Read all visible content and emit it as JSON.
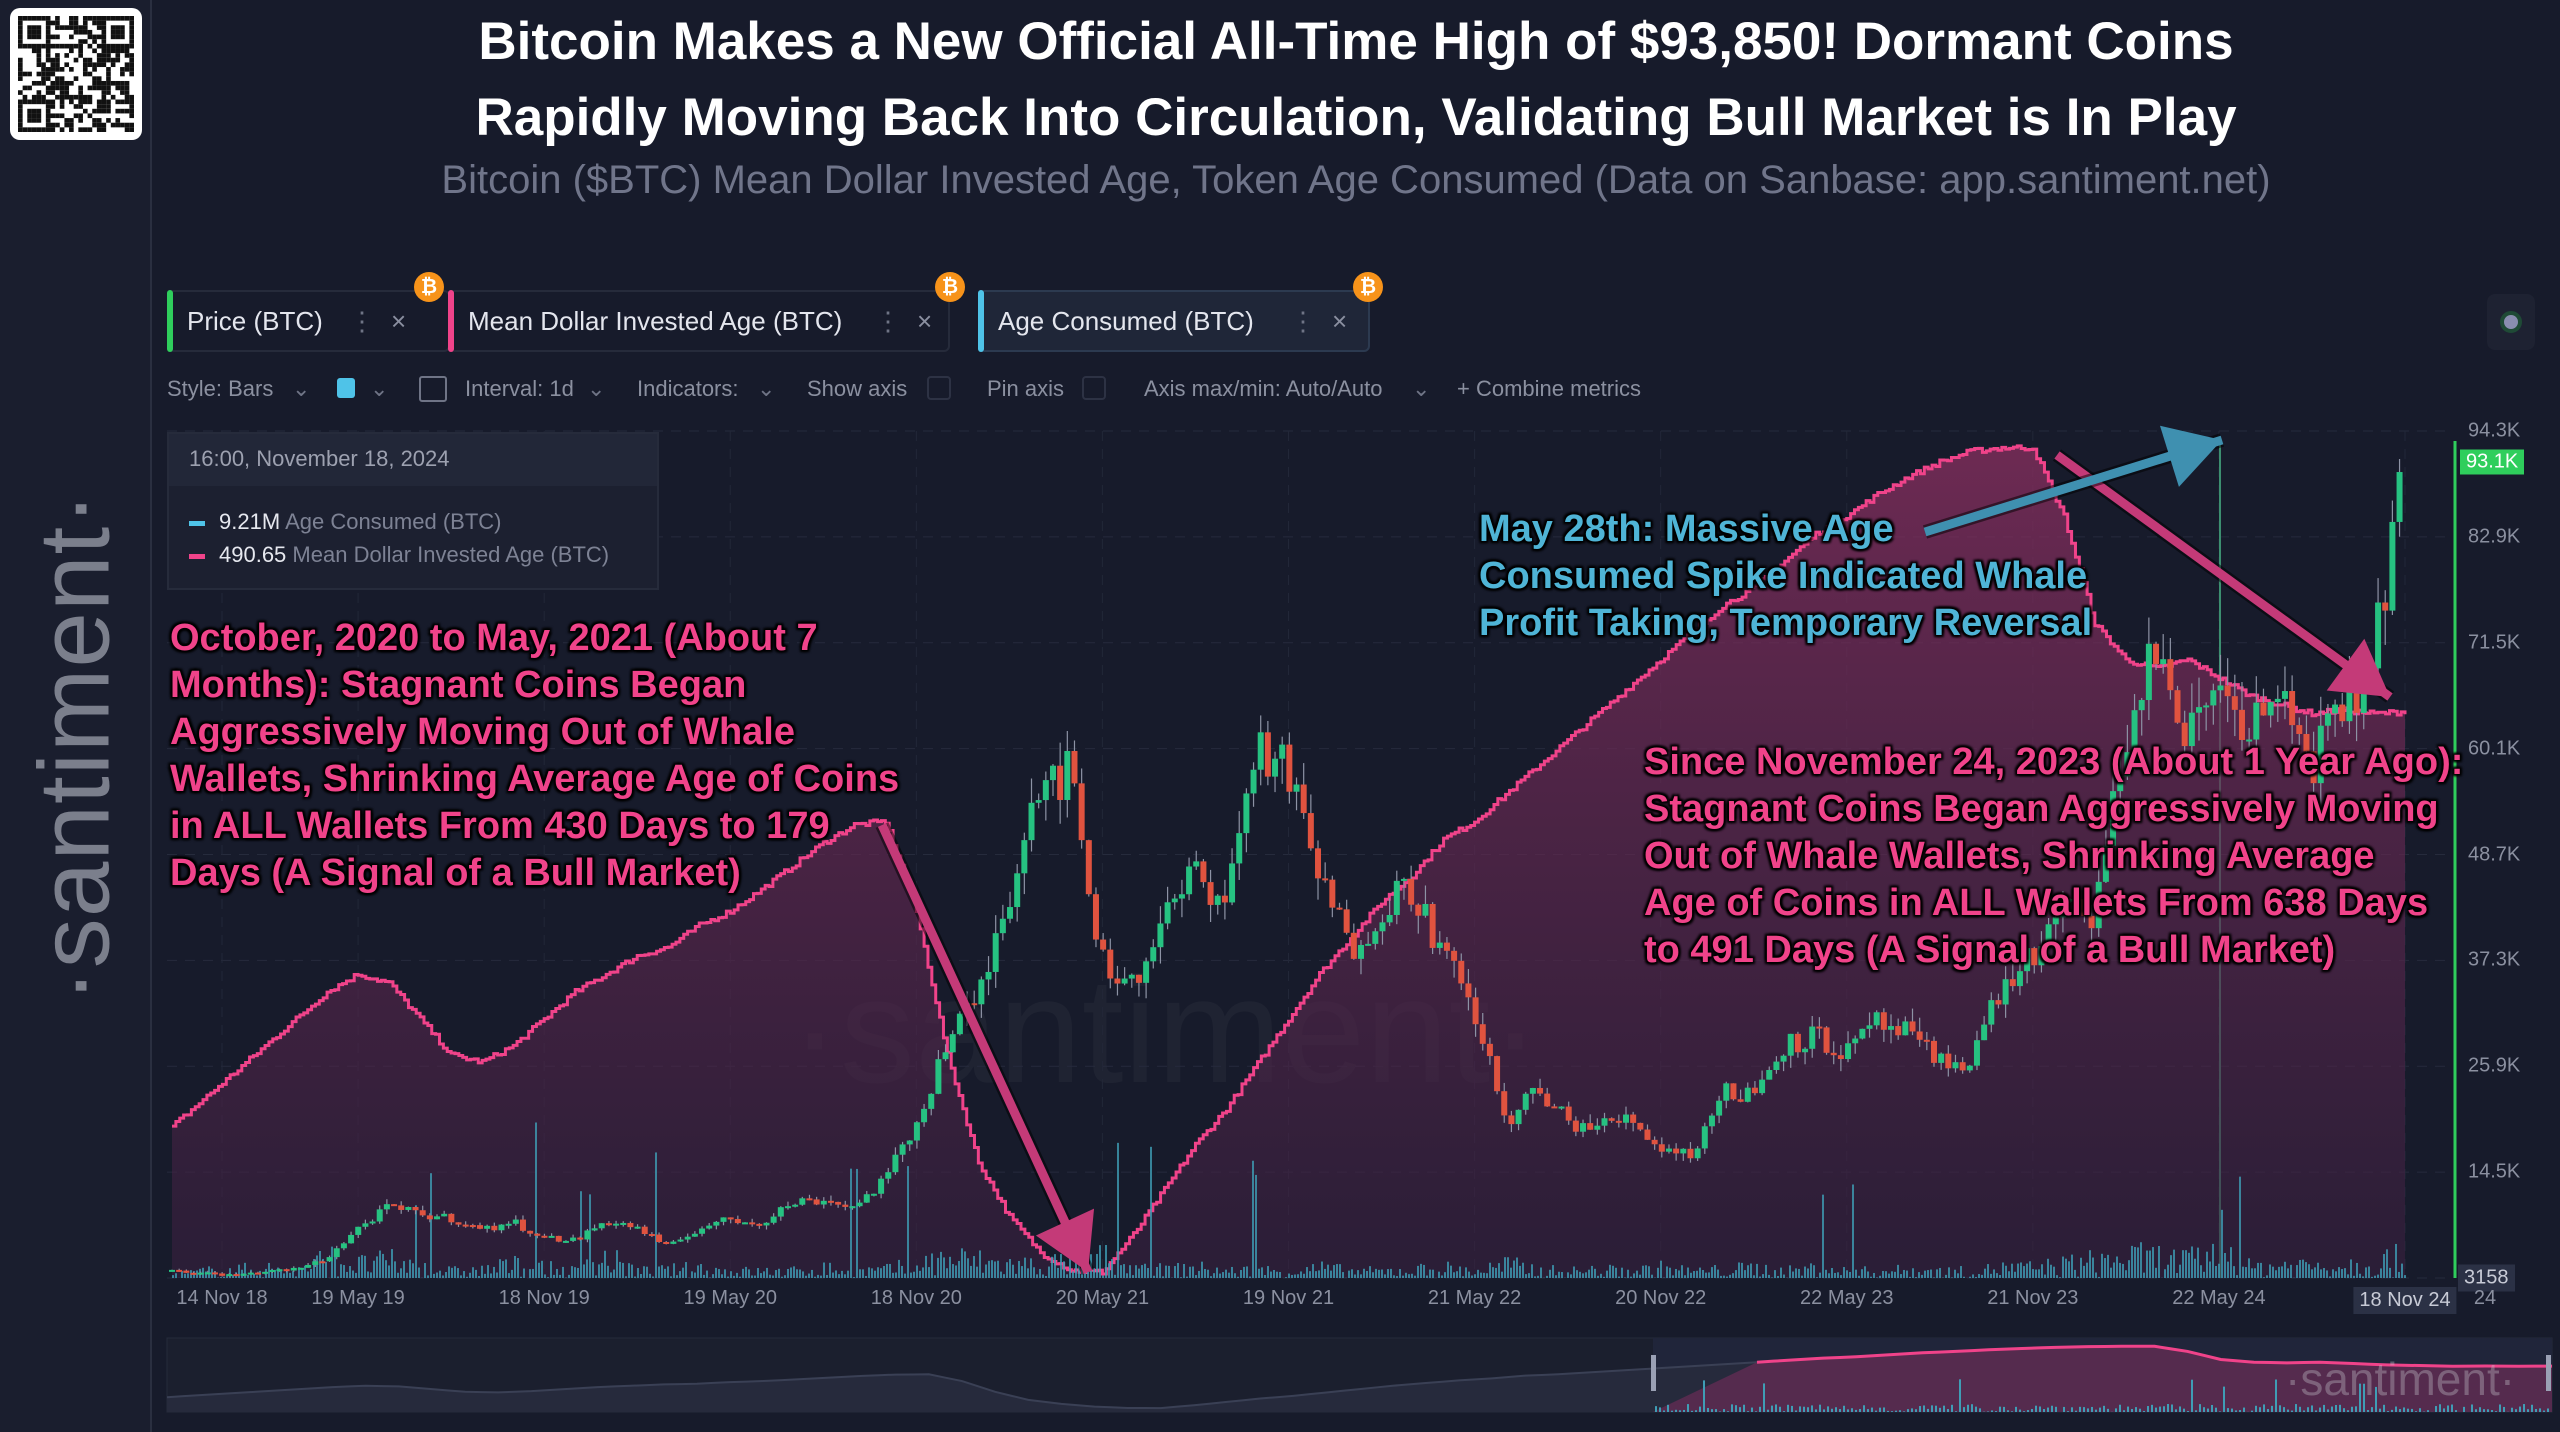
{
  "header": {
    "title_line1": "Bitcoin Makes a New Official All-Time High of $93,850! Dormant Coins",
    "title_line2": "Rapidly Moving Back Into Circulation, Validating Bull Market is In Play",
    "subtitle": "Bitcoin ($BTC) Mean Dollar Invested Age, Token Age Consumed (Data on Sanbase: app.santiment.net)",
    "logo_text": "·santiment·"
  },
  "tabs": [
    {
      "label": "Price (BTC)",
      "color": "#2fce5c"
    },
    {
      "label": "Mean Dollar Invested Age (BTC)",
      "color": "#f0438a"
    },
    {
      "label": "Age Consumed (BTC)",
      "color": "#4fc3e8"
    }
  ],
  "tab_menu_icon": "⋮",
  "tab_close_icon": "×",
  "coin_icon": "₿",
  "toolbar": {
    "style": "Style: Bars",
    "interval": "Interval: 1d",
    "indicators": "Indicators:",
    "show_axis": "Show axis",
    "pin_axis": "Pin axis",
    "axis_maxmin": "Axis max/min: Auto/Auto",
    "combine": "+ Combine metrics",
    "color_swatch": "#4fc3e8"
  },
  "tooltip": {
    "date": "16:00, November 18, 2024",
    "rows": [
      {
        "value": "9.21M",
        "label": "Age Consumed (BTC)",
        "color": "#4fc3e8"
      },
      {
        "value": "490.65",
        "label": "Mean Dollar Invested Age (BTC)",
        "color": "#f0438a"
      }
    ]
  },
  "annotations": {
    "left": [
      "October, 2020 to May, 2021 (About 7",
      "Months): Stagnant Coins Began",
      "Aggressively Moving Out of Whale",
      "Wallets, Shrinking Average Age of Coins",
      "in ALL Wallets From 430 Days to 179",
      "Days (A Signal of a Bull Market)"
    ],
    "top": [
      "May 28th: Massive Age",
      "Consumed Spike Indicated Whale",
      "Profit Taking, Temporary Reversal"
    ],
    "right": [
      "Since November 24, 2023 (About 1 Year Ago):",
      "Stagnant Coins Began Aggressively Moving",
      "Out of Whale Wallets, Shrinking Average",
      "Age of Coins in ALL Wallets From 638 Days",
      "to 491 Days (A Signal of a Bull Market)"
    ]
  },
  "watermark": "·santiment·",
  "chart_data": {
    "type": "line",
    "title": "Bitcoin ($BTC) Mean Dollar Invested Age, Token Age Consumed",
    "x_start": "Nov 2018",
    "x_step": "1 month",
    "x_tick_labels": [
      "14 Nov 18",
      "19 May 19",
      "18 Nov 19",
      "19 May 20",
      "18 Nov 20",
      "20 May 21",
      "19 Nov 21",
      "21 May 22",
      "20 Nov 22",
      "22 May 23",
      "21 Nov 23",
      "22 May 24",
      "18 Nov 24",
      "24"
    ],
    "x_tick_month_index": [
      0,
      6,
      12,
      18,
      24,
      30,
      36,
      42,
      48,
      54,
      60,
      66,
      72,
      73.5
    ],
    "y_tick_labels": [
      "3158",
      "14.5K",
      "25.9K",
      "37.3K",
      "48.7K",
      "60.1K",
      "71.5K",
      "82.9K",
      "94.3K"
    ],
    "ylim": [
      3158,
      94300
    ],
    "current_price_label": "93.1K",
    "grid": true,
    "series": [
      {
        "name": "Price (BTC)",
        "type": "candlestick",
        "color_up": "#26c281",
        "color_down": "#e0533f",
        "values": [
          4000,
          3700,
          3450,
          3850,
          4100,
          5300,
          8500,
          10800,
          10000,
          9600,
          8300,
          9200,
          7500,
          7200,
          9300,
          8600,
          6400,
          8600,
          9400,
          9100,
          11300,
          11600,
          10800,
          13800,
          19600,
          29000,
          33000,
          45000,
          58000,
          57000,
          37000,
          35000,
          41500,
          47000,
          43800,
          61000,
          57000,
          46300,
          38500,
          43200,
          45500,
          37700,
          31800,
          19900,
          23300,
          20000,
          19400,
          20500,
          17200,
          16500,
          23100,
          23100,
          28500,
          29200,
          27200,
          30500,
          29200,
          26000,
          27000,
          34500,
          37700,
          42300,
          42600,
          61200,
          71300,
          60600,
          67500,
          62700,
          64600,
          59000,
          63300,
          70200,
          93100
        ]
      },
      {
        "name": "Mean Dollar Invested Age (BTC)",
        "type": "area",
        "color": "#f0438a",
        "unit": "days",
        "values": [
          260,
          275,
          290,
          305,
          320,
          335,
          345,
          340,
          320,
          300,
          296,
          305,
          320,
          335,
          345,
          355,
          360,
          372,
          380,
          392,
          405,
          418,
          428,
          430,
          380,
          300,
          240,
          210,
          190,
          180,
          179,
          200,
          225,
          250,
          270,
          295,
          320,
          345,
          365,
          385,
          400,
          420,
          430,
          445,
          460,
          475,
          490,
          505,
          520,
          535,
          550,
          560,
          575,
          590,
          600,
          612,
          622,
          630,
          636,
          638,
          638,
          600,
          540,
          520,
          515,
          520,
          510,
          500,
          495,
          490,
          492,
          490,
          491
        ]
      },
      {
        "name": "Age Consumed (BTC)",
        "type": "bar",
        "color": "#3f9db5",
        "relative_peaks": [
          0.05,
          0.1,
          0.12,
          0.15,
          0.1,
          0.3,
          0.2,
          0.25,
          0.15,
          0.1,
          0.12,
          0.2,
          0.15,
          0.1,
          0.3,
          0.1,
          0.12,
          0.15,
          0.1,
          0.1,
          0.1,
          0.15,
          0.1,
          0.12,
          0.2,
          0.3,
          0.25,
          0.2,
          0.2,
          0.25,
          0.3,
          0.15,
          0.12,
          0.15,
          0.1,
          0.12,
          0.1,
          0.15,
          0.1,
          0.1,
          0.12,
          0.15,
          0.1,
          0.2,
          0.12,
          0.1,
          0.12,
          0.1,
          0.15,
          0.1,
          0.12,
          0.15,
          0.1,
          0.15,
          0.1,
          0.1,
          0.12,
          0.1,
          0.1,
          0.15,
          0.15,
          0.2,
          0.25,
          0.3,
          0.3,
          0.25,
          0.4,
          0.15,
          0.2,
          0.2,
          0.2,
          0.25,
          0.3
        ]
      }
    ]
  }
}
